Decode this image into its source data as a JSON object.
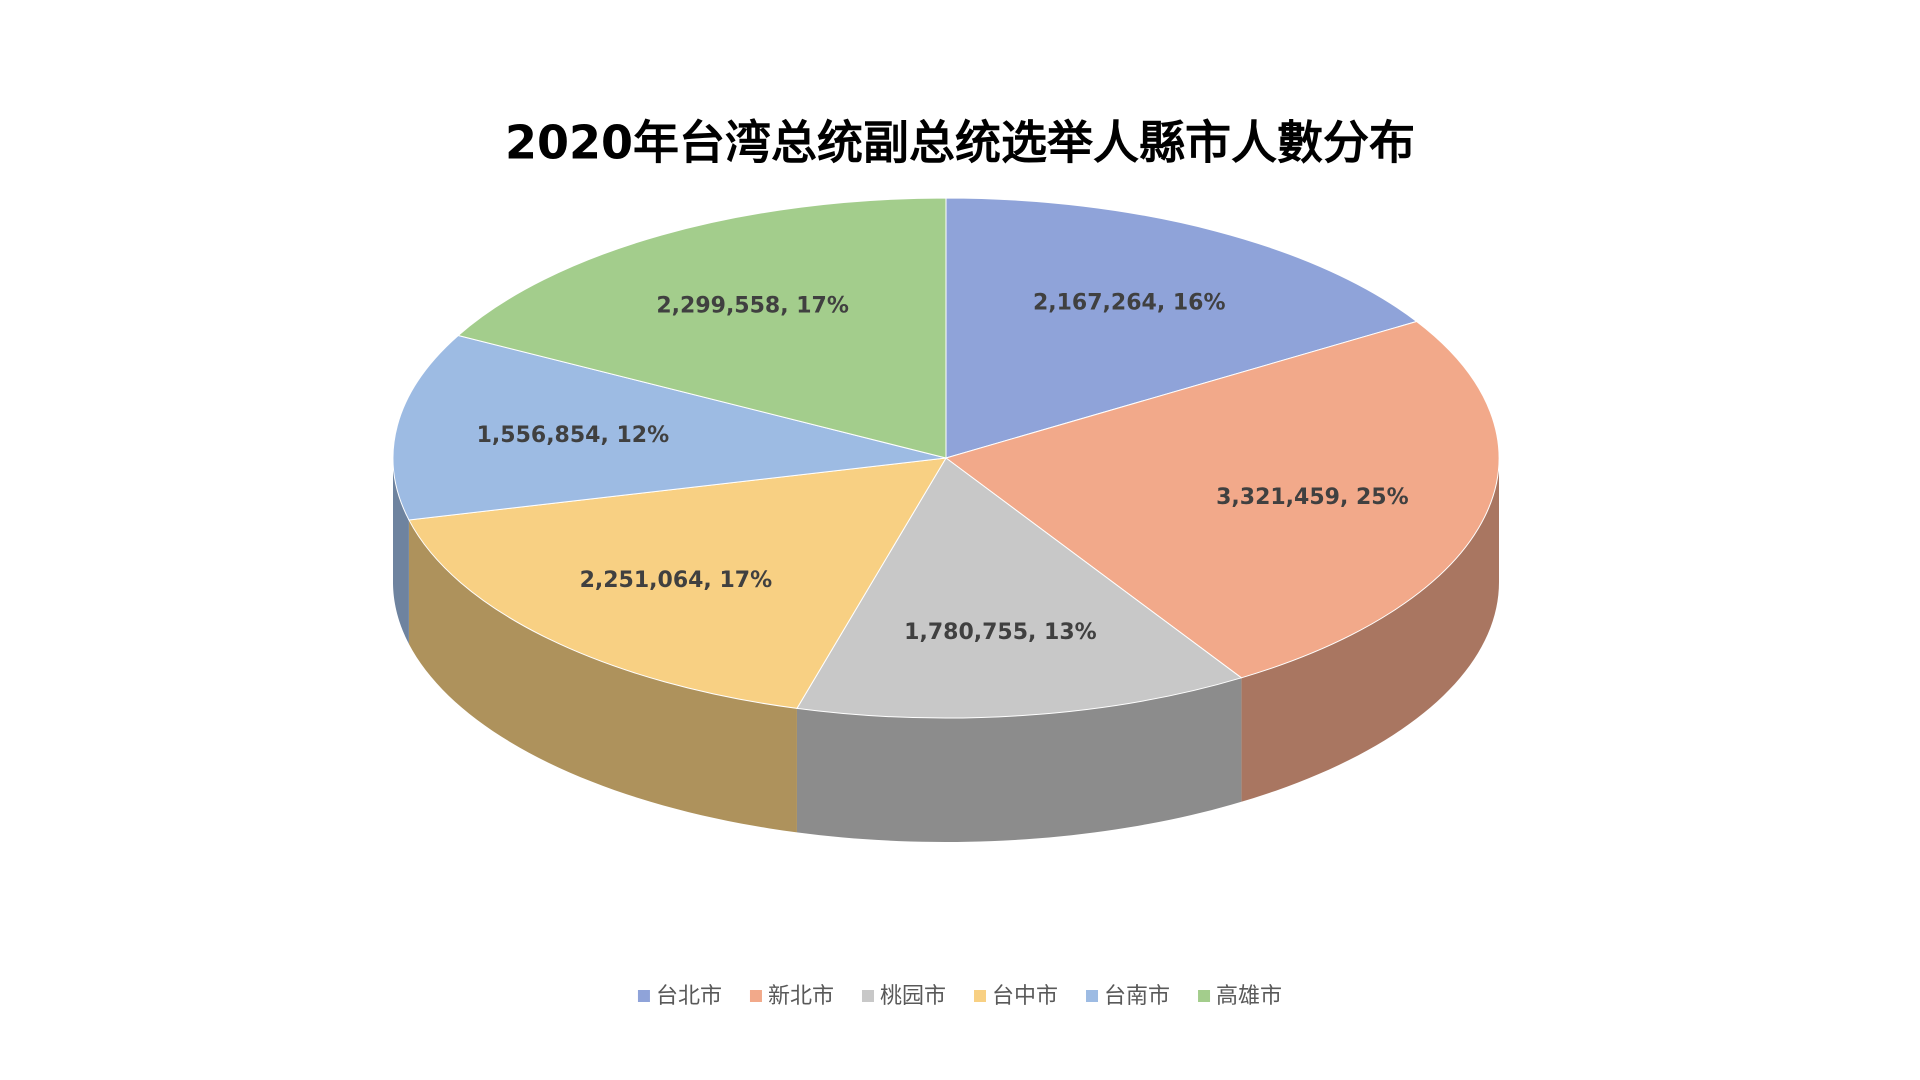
{
  "chart_data": {
    "type": "pie3d",
    "title": "2020年台湾总统副总统选举人縣市人數分布",
    "categories": [
      "台北市",
      "新北市",
      "桃园市",
      "台中市",
      "台南市",
      "高雄市"
    ],
    "values": [
      2167264,
      3321459,
      1780755,
      2251064,
      1556854,
      2299558
    ],
    "value_labels": [
      "2,167,264, 16%",
      "3,321,459, 25%",
      "1,780,755, 13%",
      "2,251,064, 17%",
      "1,556,854, 12%",
      "2,299,558, 17%"
    ],
    "colors": [
      "#8fa3d9",
      "#f2a98a",
      "#c8c8c8",
      "#f8d083",
      "#9dbbe3",
      "#a3cd8c"
    ],
    "legend": "bottom"
  }
}
